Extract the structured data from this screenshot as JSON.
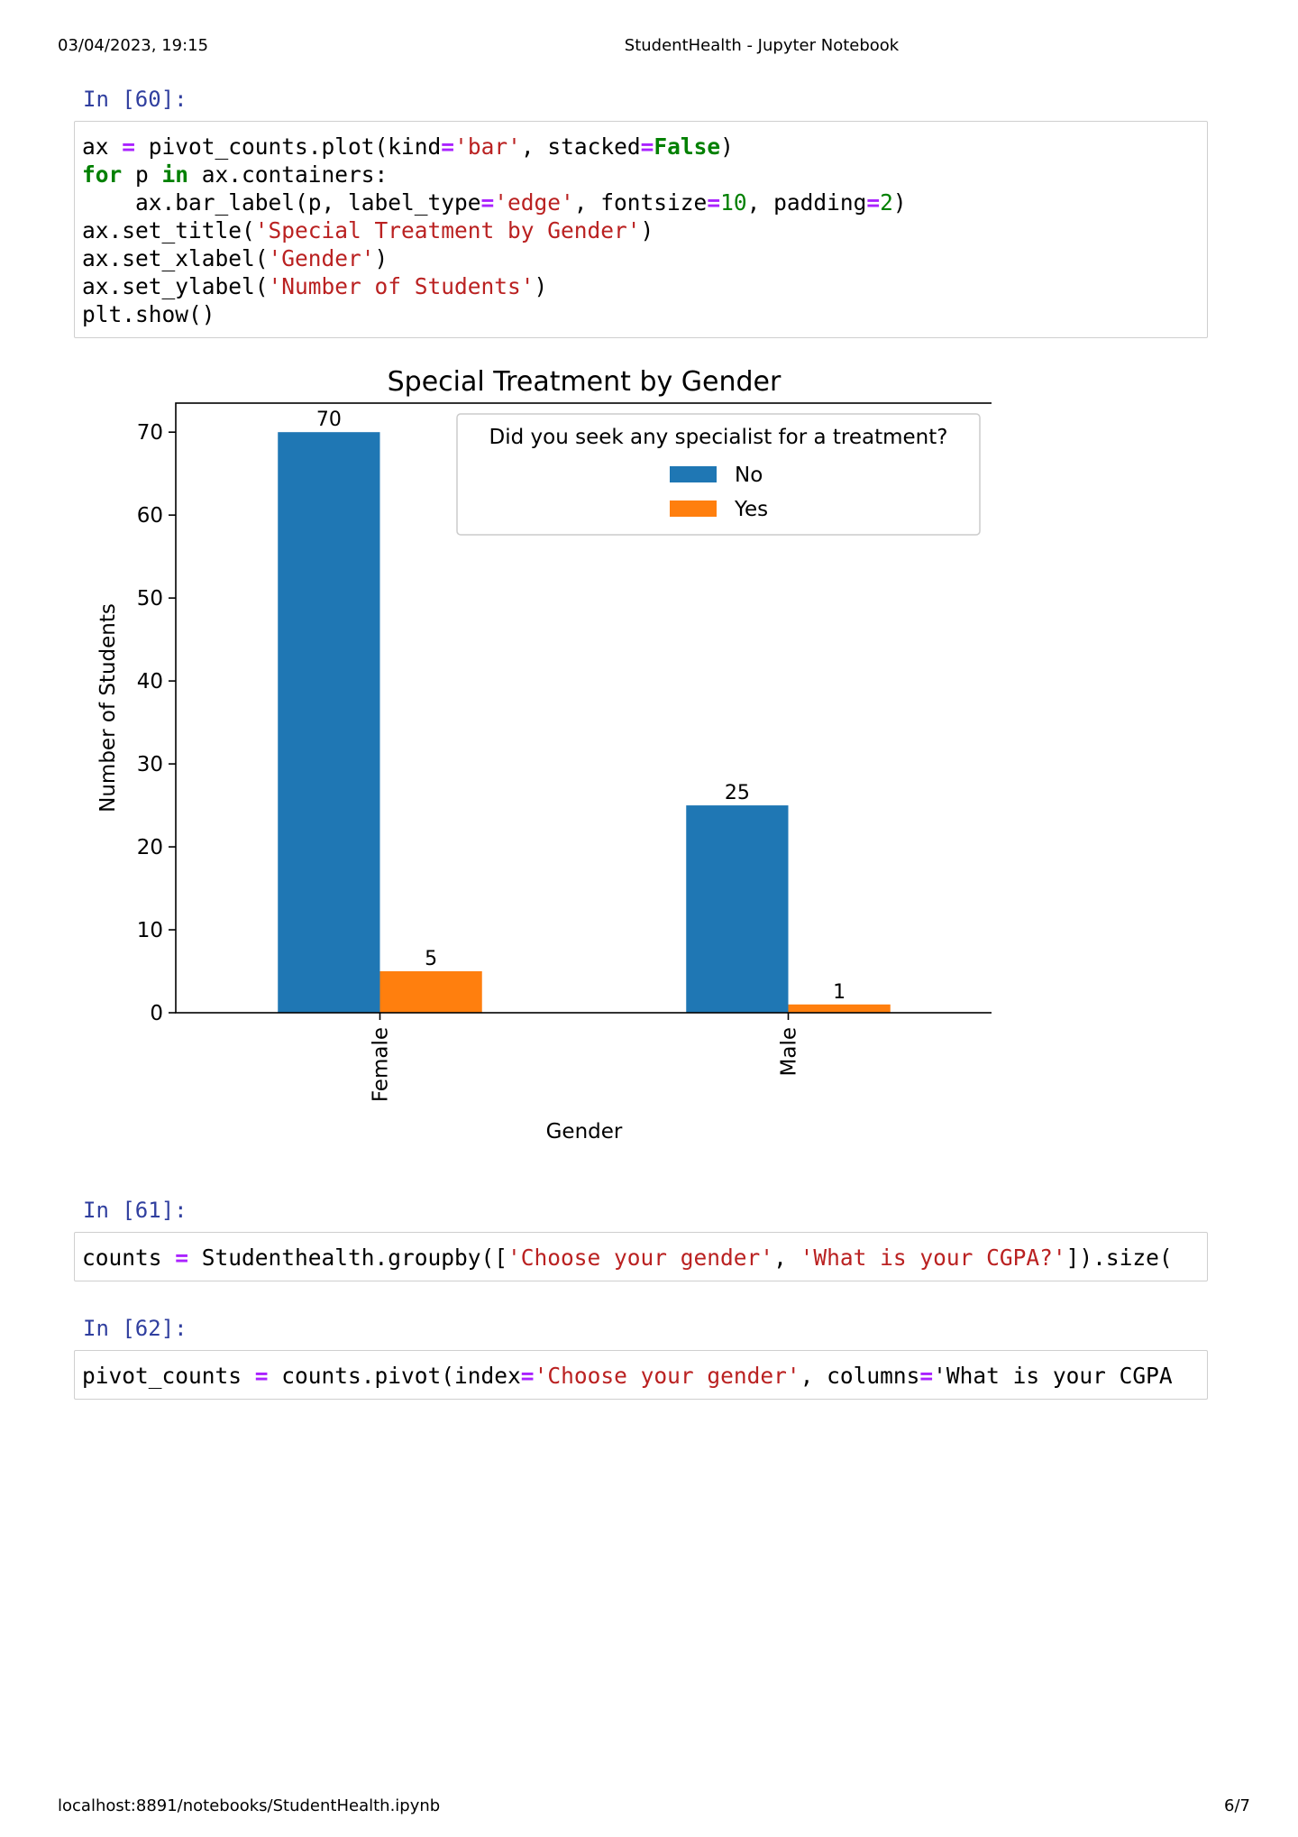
{
  "page_header": {
    "datetime": "03/04/2023, 19:15",
    "title": "StudentHealth - Jupyter Notebook"
  },
  "page_footer": {
    "url": "localhost:8891/notebooks/StudentHealth.ipynb",
    "page": "6/7"
  },
  "cells": [
    {
      "prompt": "In [60]:",
      "lines": [
        [
          [
            "ax ",
            ""
          ],
          [
            "=",
            "op"
          ],
          [
            " pivot_counts.plot(kind",
            ""
          ],
          [
            "=",
            "op"
          ],
          [
            "'bar'",
            "st"
          ],
          [
            ", stacked",
            ""
          ],
          [
            "=",
            "op"
          ],
          [
            "False",
            "kw"
          ],
          [
            ")",
            ""
          ]
        ],
        [
          [
            "for",
            "kw"
          ],
          [
            " p ",
            ""
          ],
          [
            "in",
            "kw"
          ],
          [
            " ax.containers:",
            ""
          ]
        ],
        [
          [
            "    ax.bar_label(p, label_type",
            ""
          ],
          [
            "=",
            "op"
          ],
          [
            "'edge'",
            "st"
          ],
          [
            ", fontsize",
            ""
          ],
          [
            "=",
            "op"
          ],
          [
            "10",
            "nm"
          ],
          [
            ", padding",
            ""
          ],
          [
            "=",
            "op"
          ],
          [
            "2",
            "nm"
          ],
          [
            ")",
            ""
          ]
        ],
        [
          [
            "ax.set_title(",
            ""
          ],
          [
            "'Special Treatment by Gender'",
            "st"
          ],
          [
            ")",
            ""
          ]
        ],
        [
          [
            "ax.set_xlabel(",
            ""
          ],
          [
            "'Gender'",
            "st"
          ],
          [
            ")",
            ""
          ]
        ],
        [
          [
            "ax.set_ylabel(",
            ""
          ],
          [
            "'Number of Students'",
            "st"
          ],
          [
            ")",
            ""
          ]
        ],
        [
          [
            "plt.show()",
            ""
          ]
        ]
      ]
    },
    {
      "prompt": "In [61]:",
      "lines": [
        [
          [
            "counts ",
            ""
          ],
          [
            "=",
            "op"
          ],
          [
            " Studenthealth.groupby([",
            ""
          ],
          [
            "'Choose your gender'",
            "st"
          ],
          [
            ", ",
            ""
          ],
          [
            "'What is your CGPA?'",
            "st"
          ],
          [
            "]).size(",
            ""
          ]
        ]
      ]
    },
    {
      "prompt": "In [62]:",
      "lines": [
        [
          [
            "pivot_counts ",
            ""
          ],
          [
            "=",
            "op"
          ],
          [
            " counts.pivot(index",
            ""
          ],
          [
            "=",
            "op"
          ],
          [
            "'Choose your gender'",
            "st"
          ],
          [
            ", columns",
            ""
          ],
          [
            "=",
            "op"
          ],
          [
            "'What is your CGPA",
            ""
          ]
        ]
      ]
    }
  ],
  "chart_data": {
    "type": "bar",
    "title": "Special Treatment by Gender",
    "xlabel": "Gender",
    "ylabel": "Number of Students",
    "categories": [
      "Female",
      "Male"
    ],
    "series": [
      {
        "name": "No",
        "values": [
          70,
          25
        ],
        "color": "#1f77b4"
      },
      {
        "name": "Yes",
        "values": [
          5,
          1
        ],
        "color": "#ff7f0e"
      }
    ],
    "ylim": [
      0,
      73.5
    ],
    "yticks": [
      0,
      10,
      20,
      30,
      40,
      50,
      60,
      70
    ],
    "legend": {
      "title": "Did you seek any specialist for a treatment?",
      "placement": "top-right"
    },
    "grid": false
  }
}
